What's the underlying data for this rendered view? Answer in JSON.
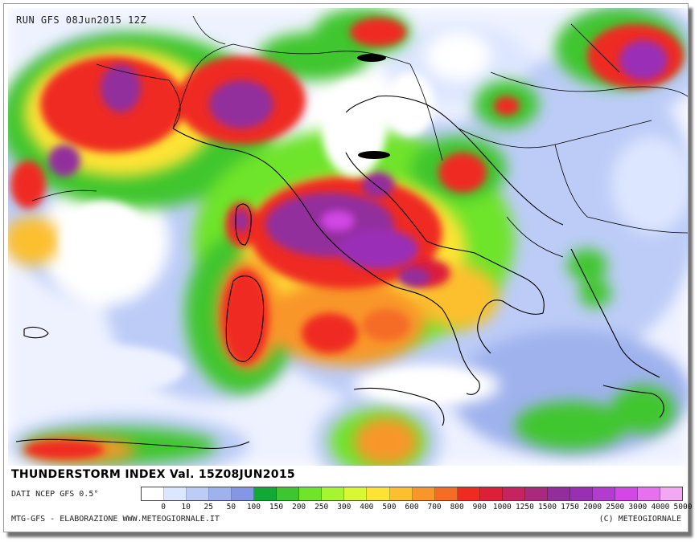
{
  "header": {
    "run_label": "RUN GFS 08Jun2015 12Z"
  },
  "legend": {
    "title": "THUNDERSTORM INDEX Val. 15Z08JUN2015",
    "source": "DATI NCEP GFS 0.5°",
    "colors": [
      "#ffffff",
      "#dde6ff",
      "#bcccf7",
      "#9fb2ee",
      "#8497e6",
      "#12a835",
      "#3fc62f",
      "#6ee42b",
      "#a6f531",
      "#d9f733",
      "#fde334",
      "#fcbf2f",
      "#f9962b",
      "#f56c25",
      "#ef2a21",
      "#dd1f3a",
      "#c6245e",
      "#a92a7d",
      "#932d9d",
      "#9a2fb6",
      "#b33bd2",
      "#d247e6",
      "#e76ff0",
      "#f4a8f4"
    ],
    "ticks": [
      "0",
      "10",
      "25",
      "50",
      "100",
      "150",
      "200",
      "250",
      "300",
      "400",
      "500",
      "600",
      "700",
      "800",
      "900",
      "1000",
      "1250",
      "1500",
      "1750",
      "2000",
      "2500",
      "3000",
      "4000",
      "5000"
    ]
  },
  "footer": {
    "left": "MTG-GFS - ELABORAZIONE WWW.METEOGIORNALE.IT",
    "right": "(C) METEOGIORNALE"
  }
}
